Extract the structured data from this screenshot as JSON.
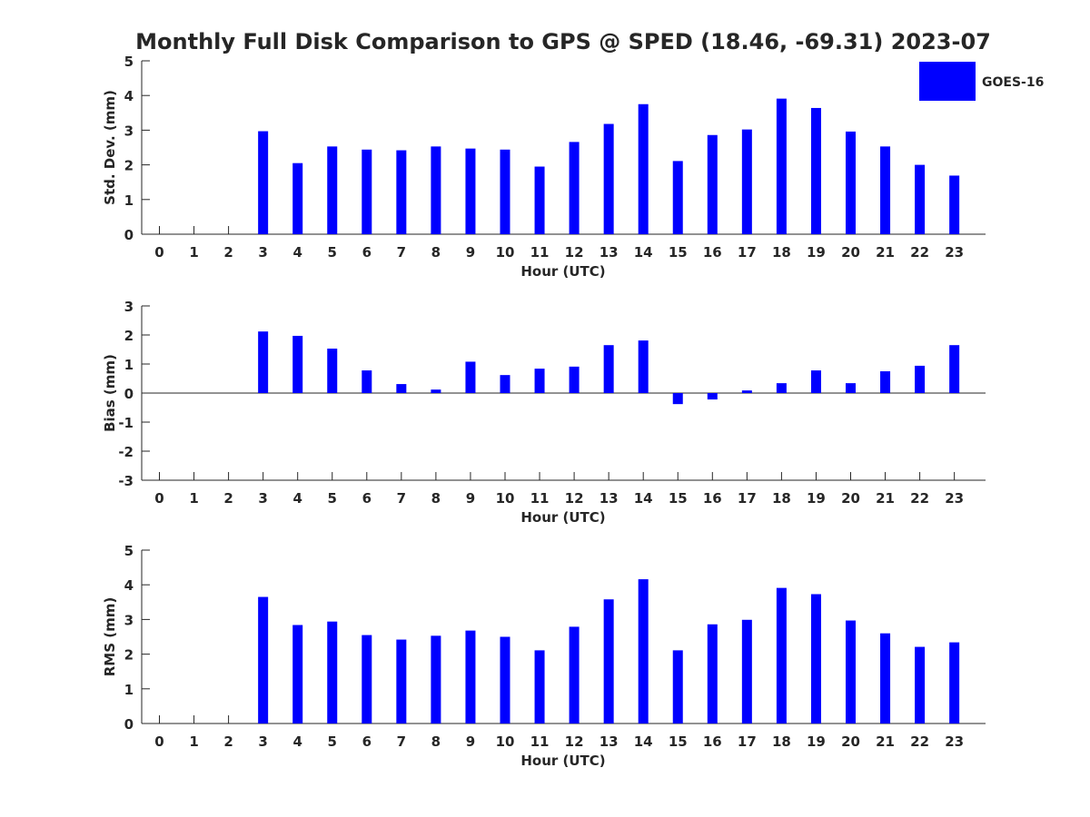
{
  "title": "Monthly Full Disk Comparison to GPS @ SPED (18.46, -69.31) 2023-07",
  "legend": {
    "label": "GOES-16",
    "color": "#0000ff"
  },
  "chart_data": [
    {
      "type": "bar",
      "series": [
        {
          "name": "GOES-16",
          "color": "#0000ff"
        }
      ],
      "xlabel": "Hour (UTC)",
      "ylabel": "Std. Dev. (mm)",
      "ylim": [
        0,
        5
      ],
      "yticks": [
        0,
        1,
        2,
        3,
        4,
        5
      ],
      "categories": [
        0,
        1,
        2,
        3,
        4,
        5,
        6,
        7,
        8,
        9,
        10,
        11,
        12,
        13,
        14,
        15,
        16,
        17,
        18,
        19,
        20,
        21,
        22,
        23
      ],
      "values": [
        null,
        null,
        null,
        2.97,
        2.05,
        2.53,
        2.44,
        2.42,
        2.53,
        2.47,
        2.44,
        1.95,
        2.66,
        3.18,
        3.75,
        2.11,
        2.86,
        3.02,
        3.91,
        3.64,
        2.96,
        2.53,
        2.0,
        1.69
      ],
      "legend": "top-right"
    },
    {
      "type": "bar",
      "series": [
        {
          "name": "GOES-16",
          "color": "#0000ff"
        }
      ],
      "xlabel": "Hour (UTC)",
      "ylabel": "Bias (mm)",
      "ylim": [
        -3,
        3
      ],
      "yticks": [
        -3,
        -2,
        -1,
        0,
        1,
        2,
        3
      ],
      "categories": [
        0,
        1,
        2,
        3,
        4,
        5,
        6,
        7,
        8,
        9,
        10,
        11,
        12,
        13,
        14,
        15,
        16,
        17,
        18,
        19,
        20,
        21,
        22,
        23
      ],
      "values": [
        null,
        null,
        null,
        2.12,
        1.97,
        1.53,
        0.78,
        0.31,
        0.12,
        1.08,
        0.62,
        0.84,
        0.91,
        1.65,
        1.81,
        -0.38,
        -0.22,
        0.09,
        0.34,
        0.78,
        0.34,
        0.75,
        0.94,
        1.65
      ]
    },
    {
      "type": "bar",
      "series": [
        {
          "name": "GOES-16",
          "color": "#0000ff"
        }
      ],
      "xlabel": "Hour (UTC)",
      "ylabel": "RMS (mm)",
      "ylim": [
        0,
        5
      ],
      "yticks": [
        0,
        1,
        2,
        3,
        4,
        5
      ],
      "categories": [
        0,
        1,
        2,
        3,
        4,
        5,
        6,
        7,
        8,
        9,
        10,
        11,
        12,
        13,
        14,
        15,
        16,
        17,
        18,
        19,
        20,
        21,
        22,
        23
      ],
      "values": [
        null,
        null,
        null,
        3.65,
        2.84,
        2.94,
        2.55,
        2.42,
        2.53,
        2.68,
        2.5,
        2.11,
        2.79,
        3.58,
        4.16,
        2.11,
        2.86,
        2.99,
        3.91,
        3.73,
        2.97,
        2.6,
        2.21,
        2.34
      ]
    }
  ]
}
